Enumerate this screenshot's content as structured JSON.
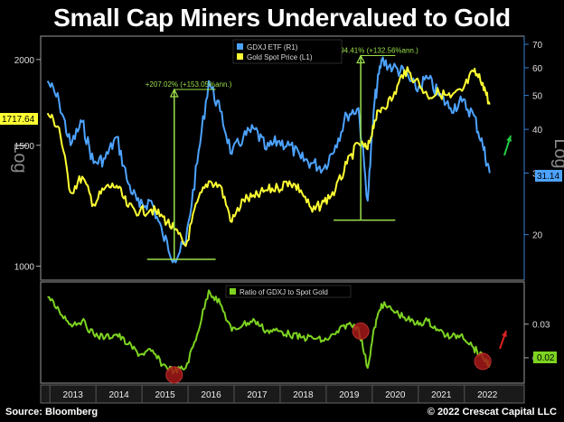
{
  "title": "Small Cap Miners Undervalued to Gold",
  "footer": {
    "source": "Source: Bloomberg",
    "copyright": "© 2022 Crescat Capital LLC"
  },
  "colors": {
    "gdxj": "#4da3ff",
    "gold": "#ffff33",
    "ratio": "#7dd321",
    "annot": "#9be04a",
    "marker": "#a31818",
    "arrow_green": "#22cc44",
    "arrow_red": "#dd2222"
  },
  "chart_data": [
    {
      "type": "line",
      "title": "",
      "x": [
        2012.95,
        2013.2,
        2013.45,
        2013.7,
        2013.95,
        2014.2,
        2014.45,
        2014.7,
        2014.95,
        2015.2,
        2015.45,
        2015.7,
        2015.95,
        2016.2,
        2016.45,
        2016.7,
        2016.95,
        2017.2,
        2017.45,
        2017.7,
        2017.95,
        2018.2,
        2018.45,
        2018.7,
        2018.95,
        2019.2,
        2019.45,
        2019.7,
        2019.9,
        2020.05,
        2020.2,
        2020.45,
        2020.7,
        2020.95,
        2021.2,
        2021.45,
        2021.7,
        2021.95,
        2022.2,
        2022.4,
        2022.55
      ],
      "series": [
        {
          "name": "GDXJ ETF (R1)",
          "axis": "right",
          "values": [
            55,
            48,
            36,
            42,
            32,
            33,
            38,
            28,
            24,
            25,
            20,
            17,
            19,
            32,
            55,
            45,
            34,
            38,
            40,
            35,
            37,
            36,
            33,
            32,
            31,
            36,
            44,
            46,
            25,
            48,
            63,
            60,
            58,
            52,
            56,
            50,
            46,
            48,
            44,
            36,
            30
          ]
        },
        {
          "name": "Gold Spot Price (L1)",
          "axis": "left",
          "values": [
            1670,
            1590,
            1280,
            1350,
            1230,
            1300,
            1310,
            1220,
            1200,
            1210,
            1180,
            1130,
            1070,
            1240,
            1330,
            1310,
            1160,
            1250,
            1260,
            1290,
            1300,
            1330,
            1290,
            1200,
            1240,
            1290,
            1410,
            1510,
            1480,
            1630,
            1700,
            1760,
            1930,
            1870,
            1770,
            1790,
            1760,
            1800,
            1920,
            1850,
            1720
          ]
        }
      ],
      "xlabel": "",
      "ylabel_left": "Log",
      "ylabel_right": "Log",
      "left_axis": {
        "range": [
          960,
          2150
        ],
        "ticks": [
          1000,
          1500,
          2000
        ]
      },
      "right_axis": {
        "range": [
          15,
          73
        ],
        "ticks": [
          20,
          30,
          40,
          50,
          60,
          70
        ]
      },
      "last_value_labels": {
        "gold": "1717.64",
        "gdxj": "31.14"
      },
      "annotations": [
        {
          "text": "+207.02% (+153.05%ann.)",
          "x_start": 2015.7,
          "x_end": 2016.6,
          "low": 17,
          "high": 52
        },
        {
          "text": "+194.41% (+132.56%ann.)",
          "x_start": 2019.75,
          "x_end": 2020.5,
          "low": 22,
          "high": 65
        }
      ],
      "legend": [
        "GDXJ ETF (R1)",
        "Gold Spot Price (L1)"
      ],
      "legend_position": "top-center",
      "grid": false
    },
    {
      "type": "line",
      "title": "",
      "x": [
        2012.95,
        2013.2,
        2013.45,
        2013.7,
        2013.95,
        2014.2,
        2014.45,
        2014.7,
        2014.95,
        2015.2,
        2015.45,
        2015.7,
        2015.95,
        2016.2,
        2016.45,
        2016.7,
        2016.95,
        2017.2,
        2017.45,
        2017.7,
        2017.95,
        2018.2,
        2018.45,
        2018.7,
        2018.95,
        2019.2,
        2019.45,
        2019.7,
        2019.9,
        2020.05,
        2020.2,
        2020.45,
        2020.7,
        2020.95,
        2021.2,
        2021.45,
        2021.7,
        2021.95,
        2022.2,
        2022.4,
        2022.55
      ],
      "series": [
        {
          "name": "Ratio of GDXJ to Spot Gold",
          "values": [
            0.038,
            0.034,
            0.03,
            0.031,
            0.027,
            0.026,
            0.027,
            0.024,
            0.021,
            0.022,
            0.018,
            0.016,
            0.017,
            0.027,
            0.04,
            0.036,
            0.028,
            0.03,
            0.031,
            0.028,
            0.028,
            0.027,
            0.026,
            0.026,
            0.025,
            0.027,
            0.03,
            0.029,
            0.017,
            0.029,
            0.036,
            0.034,
            0.032,
            0.03,
            0.031,
            0.028,
            0.026,
            0.027,
            0.023,
            0.02,
            0.018
          ]
        }
      ],
      "y_axis": {
        "range": [
          0.013,
          0.042
        ],
        "ticks": [
          0.02,
          0.03
        ],
        "tick_labels": [
          "0.02",
          "0.03"
        ]
      },
      "last_value_label": "0.02",
      "legend": [
        "Ratio of GDXJ to Spot Gold"
      ],
      "legend_position": "top-center",
      "markers_at_x": [
        2015.7,
        2019.75,
        2022.4
      ]
    }
  ],
  "x_axis": {
    "range": [
      2012.8,
      2023.3
    ],
    "tick_labels": [
      "2013",
      "2014",
      "2015",
      "2016",
      "2017",
      "2018",
      "2019",
      "2020",
      "2021",
      "2022"
    ],
    "tick_centers": [
      2013.5,
      2014.5,
      2015.5,
      2016.5,
      2017.5,
      2018.5,
      2019.5,
      2020.5,
      2021.5,
      2022.5
    ]
  }
}
